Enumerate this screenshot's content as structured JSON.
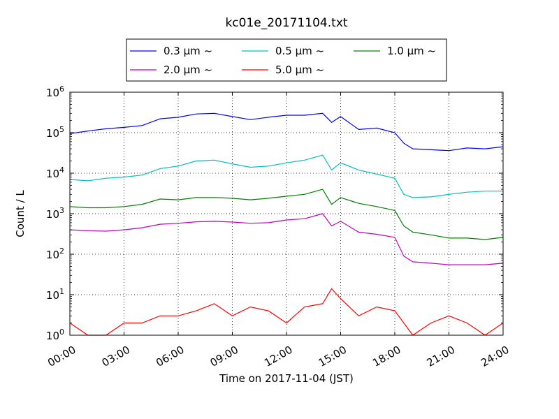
{
  "chart_data": {
    "type": "line",
    "title": "kc01e_20171104.txt",
    "xlabel": "Time on 2017-11-04 (JST)",
    "ylabel": "Count / L",
    "yscale": "log",
    "ylim": [
      1,
      1000000
    ],
    "xlim_hours": [
      0,
      24
    ],
    "grid": true,
    "legend_position": "top-center-outside",
    "x_tick_labels": [
      "00:00",
      "03:00",
      "06:00",
      "09:00",
      "12:00",
      "15:00",
      "18:00",
      "21:00",
      "24:00"
    ],
    "y_tick_labels": [
      {
        "base": "10",
        "exp": "0"
      },
      {
        "base": "10",
        "exp": "1"
      },
      {
        "base": "10",
        "exp": "2"
      },
      {
        "base": "10",
        "exp": "3"
      },
      {
        "base": "10",
        "exp": "4"
      },
      {
        "base": "10",
        "exp": "5"
      },
      {
        "base": "10",
        "exp": "6"
      }
    ],
    "x_hours": [
      0,
      1,
      2,
      3,
      4,
      5,
      6,
      7,
      8,
      9,
      10,
      11,
      12,
      13,
      14,
      14.5,
      15,
      16,
      17,
      18,
      18.5,
      19,
      20,
      21,
      22,
      23,
      24
    ],
    "series": [
      {
        "name": "0.3 μm ~",
        "color": "#0000ff",
        "values": [
          95000,
          110000,
          125000,
          135000,
          150000,
          220000,
          240000,
          290000,
          300000,
          250000,
          210000,
          240000,
          270000,
          270000,
          300000,
          180000,
          250000,
          120000,
          130000,
          100000,
          55000,
          40000,
          38000,
          36000,
          42000,
          40000,
          45000
        ]
      },
      {
        "name": "0.5 μm ~",
        "color": "#00bfbf",
        "values": [
          7000,
          6500,
          7500,
          8000,
          9000,
          13000,
          15000,
          20000,
          21000,
          17000,
          14000,
          15000,
          18000,
          21000,
          28000,
          12000,
          18000,
          12000,
          9500,
          7500,
          3000,
          2500,
          2600,
          3000,
          3400,
          3600,
          3600
        ]
      },
      {
        "name": "1.0 μm ~",
        "color": "#008000",
        "values": [
          1500,
          1400,
          1400,
          1500,
          1700,
          2300,
          2200,
          2500,
          2500,
          2400,
          2200,
          2400,
          2700,
          3000,
          4000,
          1700,
          2500,
          1800,
          1500,
          1200,
          500,
          350,
          300,
          250,
          250,
          230,
          260
        ]
      },
      {
        "name": "2.0 μm ~",
        "color": "#bf00bf",
        "values": [
          400,
          380,
          370,
          400,
          450,
          550,
          580,
          630,
          650,
          620,
          580,
          600,
          700,
          750,
          1000,
          500,
          650,
          350,
          310,
          260,
          90,
          65,
          60,
          55,
          55,
          55,
          60
        ]
      },
      {
        "name": "5.0 μm ~",
        "color": "#ff0000",
        "values": [
          2,
          1,
          1,
          2,
          2,
          3,
          3,
          4,
          6,
          3,
          5,
          4,
          2,
          5,
          6,
          14,
          8,
          3,
          5,
          4,
          2,
          1,
          2,
          3,
          2,
          1,
          2
        ]
      }
    ]
  }
}
